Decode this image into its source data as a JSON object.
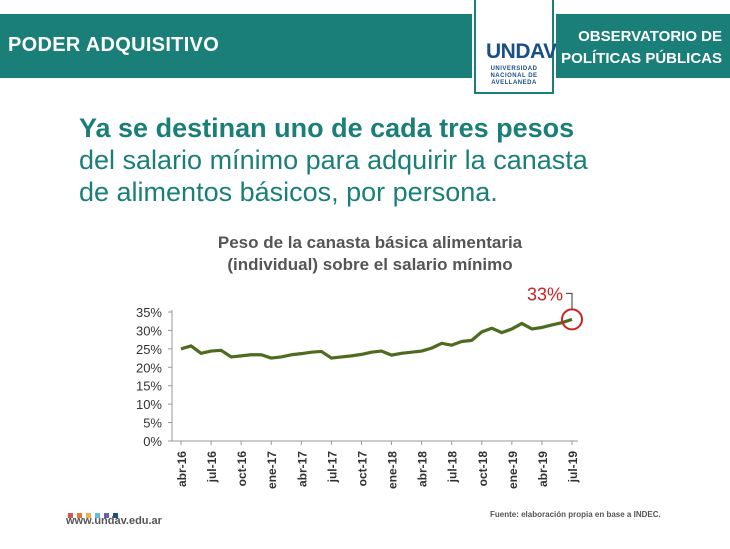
{
  "header": {
    "section_title": "PODER ADQUISITIVO",
    "observatory_line1": "OBSERVATORIO DE",
    "observatory_line2": "POLÍTICAS PÚBLICAS",
    "logo_mark": "UNDAV",
    "logo_line1": "UNIVERSIDAD",
    "logo_line2": "NACIONAL DE",
    "logo_line3": "AVELLANEDA",
    "bar_color": "#1a7f78",
    "logo_color": "#1a4f86"
  },
  "headline": {
    "bold_part": "Ya se destinan uno de cada tres pesos",
    "line2": "del salario mínimo para adquirir la canasta",
    "line3": "de alimentos básicos, por persona."
  },
  "footer": {
    "website": "www.undav.edu.ar",
    "source": "Fuente: elaboración propia en base a INDEC.",
    "dot_colors": [
      "#d9534f",
      "#e07b39",
      "#f0ad4e",
      "#5bc0de",
      "#6f5fa8",
      "#1a4f86"
    ]
  },
  "chart_data": {
    "type": "line",
    "title": "Peso de la canasta básica alimentaria",
    "subtitle": "(individual) sobre el salario mínimo",
    "x_labels": [
      "abr-16",
      "jul-16",
      "oct-16",
      "ene-17",
      "abr-17",
      "jul-17",
      "oct-17",
      "ene-18",
      "abr-18",
      "jul-18",
      "oct-18",
      "ene-19",
      "abr-19",
      "jul-19"
    ],
    "y_ticks": [
      "35%",
      "30%",
      "25%",
      "20%",
      "15%",
      "10%",
      "5%",
      "0%"
    ],
    "ylim": [
      0,
      35
    ],
    "grid": false,
    "line_color": "#4e6b1f",
    "annotation": {
      "text": "33%",
      "color": "#cc2222"
    },
    "series": [
      {
        "values": [
          25.0,
          25.8,
          23.8,
          24.4,
          24.6,
          22.8,
          23.1,
          23.4,
          23.4,
          22.5,
          22.8,
          23.4,
          23.7,
          24.1,
          24.3,
          22.5,
          22.8,
          23.1,
          23.5,
          24.1,
          24.4,
          23.3,
          23.8,
          24.1,
          24.4,
          25.2,
          26.5,
          26.0,
          27.0,
          27.3,
          29.6,
          30.6,
          29.4,
          30.4,
          31.9,
          30.4,
          30.8,
          31.5,
          32.1,
          33.0
        ]
      }
    ]
  }
}
